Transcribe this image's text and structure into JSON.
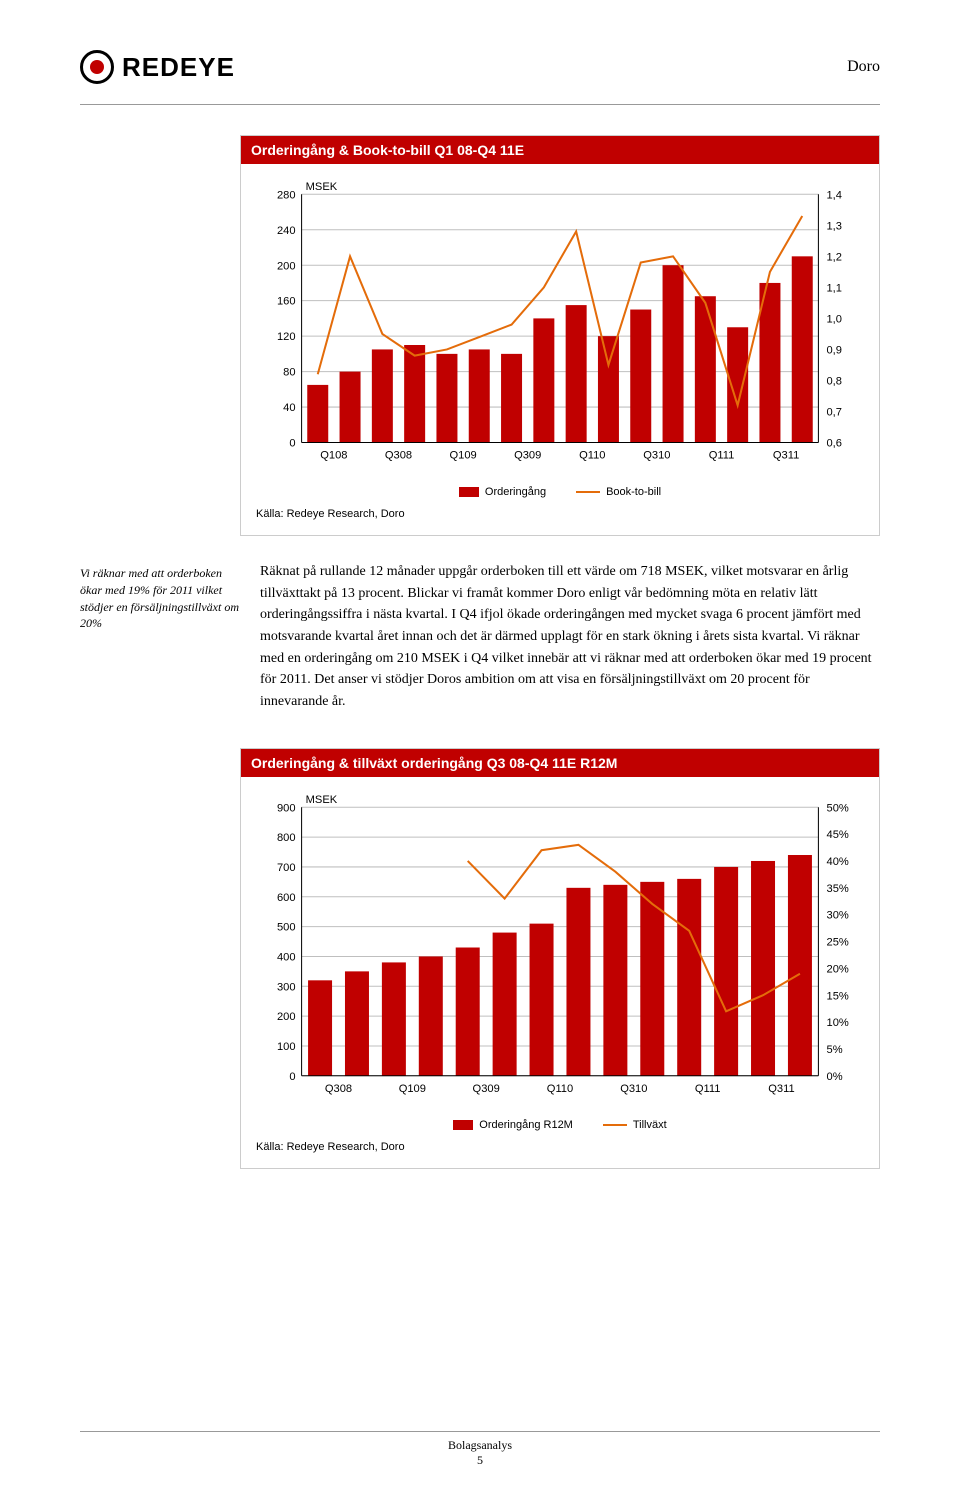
{
  "header": {
    "logo_text": "REDEYE",
    "logo_dot_color": "#c00000",
    "company": "Doro"
  },
  "chart1": {
    "title": "Orderingång & Book-to-bill Q1 08-Q4 11E",
    "title_bg": "#c00000",
    "unit_label": "MSEK",
    "source": "Källa: Redeye Research, Doro",
    "x_labels": [
      "Q108",
      "Q308",
      "Q109",
      "Q309",
      "Q110",
      "Q310",
      "Q111",
      "Q311"
    ],
    "y1_ticks": [
      0,
      40,
      80,
      120,
      160,
      200,
      240,
      280
    ],
    "y1_lim": [
      0,
      280
    ],
    "y2_ticks": [
      "0,6",
      "0,7",
      "0,8",
      "0,9",
      "1,0",
      "1,1",
      "1,2",
      "1,3",
      "1,4"
    ],
    "y2_lim": [
      0.6,
      1.4
    ],
    "bar_values": [
      65,
      80,
      105,
      110,
      100,
      105,
      100,
      140,
      155,
      120,
      150,
      200,
      165,
      130,
      180,
      210
    ],
    "line_values": [
      0.82,
      1.2,
      0.95,
      0.88,
      0.9,
      0.94,
      0.98,
      1.1,
      1.28,
      0.85,
      1.18,
      1.2,
      1.05,
      0.72,
      1.15,
      1.33
    ],
    "bar_color": "#c00000",
    "line_color": "#e46c0a",
    "grid_color": "#bfbfbf",
    "label_fontsize": 11,
    "legend": [
      {
        "label": "Orderingång",
        "kind": "bar",
        "color": "#c00000"
      },
      {
        "label": "Book-to-bill",
        "kind": "line",
        "color": "#e46c0a"
      }
    ]
  },
  "side_note": "Vi räknar med att orderboken ökar med 19% för 2011 vilket stödjer en försäljningstillväxt om 20%",
  "body_paragraph": "Räknat på rullande 12 månader uppgår orderboken till ett värde om 718 MSEK, vilket motsvarar en årlig tillväxttakt på 13 procent. Blickar vi framåt kommer Doro enligt vår bedömning möta en relativ lätt orderingångssiffra i nästa kvartal. I Q4 ifjol ökade orderingången med mycket svaga 6 procent jämfört med motsvarande kvartal året innan och det är därmed upplagt för en stark ökning i årets sista kvartal. Vi räknar med en orderingång om 210 MSEK i Q4 vilket innebär att vi räknar med att orderboken ökar med 19 procent för 2011. Det anser vi stödjer Doros ambition om att visa en försäljningstillväxt om 20 procent för innevarande år.",
  "chart2": {
    "title": "Orderingång & tillväxt orderingång Q3 08-Q4 11E R12M",
    "title_bg": "#c00000",
    "unit_label": "MSEK",
    "source": "Källa: Redeye Research, Doro",
    "x_labels": [
      "Q308",
      "Q109",
      "Q309",
      "Q110",
      "Q310",
      "Q111",
      "Q311"
    ],
    "y1_ticks": [
      0,
      100,
      200,
      300,
      400,
      500,
      600,
      700,
      800,
      900
    ],
    "y1_lim": [
      0,
      900
    ],
    "y2_ticks": [
      "0%",
      "5%",
      "10%",
      "15%",
      "20%",
      "25%",
      "30%",
      "35%",
      "40%",
      "45%",
      "50%"
    ],
    "y2_lim": [
      0,
      50
    ],
    "bar_values": [
      320,
      350,
      380,
      400,
      430,
      480,
      510,
      630,
      640,
      650,
      660,
      700,
      720,
      740
    ],
    "line_values": [
      null,
      null,
      null,
      null,
      40,
      33,
      42,
      43,
      38,
      32,
      27,
      12,
      15,
      19
    ],
    "bar_color": "#c00000",
    "line_color": "#e46c0a",
    "grid_color": "#bfbfbf",
    "label_fontsize": 11,
    "legend": [
      {
        "label": "Orderingång R12M",
        "kind": "bar",
        "color": "#c00000"
      },
      {
        "label": "Tillväxt",
        "kind": "line",
        "color": "#e46c0a"
      }
    ]
  },
  "footer": {
    "label": "Bolagsanalys",
    "page": "5"
  }
}
